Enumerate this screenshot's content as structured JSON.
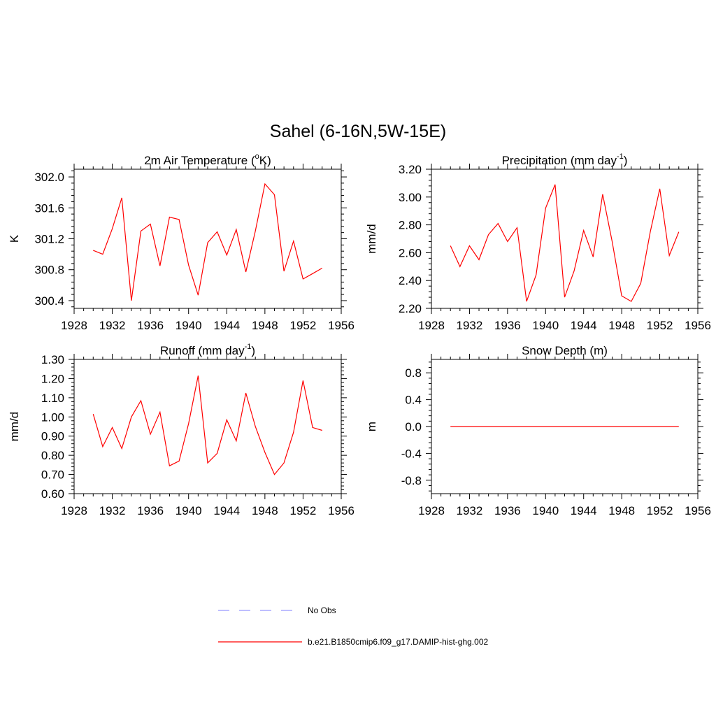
{
  "figure": {
    "title": "Sahel (6-16N,5W-15E)",
    "line_color": "#ff0000",
    "obs_color": "#9999ff"
  },
  "legend": {
    "items": [
      {
        "label": "No Obs",
        "style": "dashed",
        "color": "#9999ff"
      },
      {
        "label": "b.e21.B1850cmip6.f09_g17.DAMIP-hist-ghg.002",
        "style": "solid",
        "color": "#ff0000"
      }
    ]
  },
  "chart_data": [
    {
      "type": "line",
      "title": "2m Air Temperature (",
      "title_sup": "o",
      "title_after": "K)",
      "ylabel": "K",
      "xlim": [
        1928,
        1956
      ],
      "xticks": [
        1928,
        1932,
        1936,
        1940,
        1944,
        1948,
        1952,
        1956
      ],
      "ylim": [
        300.3,
        302.1
      ],
      "yticks": [
        300.4,
        300.8,
        301.2,
        301.6,
        302.0
      ],
      "ytick_labels": [
        "300.4",
        "300.8",
        "301.2",
        "301.6",
        "302.0"
      ],
      "series": [
        {
          "x": [
            1930,
            1931,
            1932,
            1933,
            1934,
            1935,
            1936,
            1937,
            1938,
            1939,
            1940,
            1941,
            1942,
            1943,
            1944,
            1945,
            1946,
            1947,
            1948,
            1949,
            1950,
            1951,
            1952,
            1953,
            1954
          ],
          "values": [
            301.05,
            301.0,
            301.33,
            301.73,
            300.4,
            301.3,
            301.39,
            300.85,
            301.48,
            301.45,
            300.86,
            300.47,
            301.15,
            301.29,
            300.99,
            301.32,
            300.77,
            301.3,
            301.91,
            301.77,
            300.78,
            301.17,
            300.68,
            300.75,
            300.82
          ]
        }
      ]
    },
    {
      "type": "line",
      "title": "Precipitation (mm day",
      "title_sup": "-1",
      "title_after": ")",
      "ylabel": "mm/d",
      "xlim": [
        1928,
        1956
      ],
      "xticks": [
        1928,
        1932,
        1936,
        1940,
        1944,
        1948,
        1952,
        1956
      ],
      "ylim": [
        2.2,
        3.2
      ],
      "yticks": [
        2.2,
        2.4,
        2.6,
        2.8,
        3.0,
        3.2
      ],
      "ytick_labels": [
        "2.20",
        "2.40",
        "2.60",
        "2.80",
        "3.00",
        "3.20"
      ],
      "series": [
        {
          "x": [
            1930,
            1931,
            1932,
            1933,
            1934,
            1935,
            1936,
            1937,
            1938,
            1939,
            1940,
            1941,
            1942,
            1943,
            1944,
            1945,
            1946,
            1947,
            1948,
            1949,
            1950,
            1951,
            1952,
            1953,
            1954
          ],
          "values": [
            2.65,
            2.5,
            2.65,
            2.55,
            2.73,
            2.81,
            2.68,
            2.78,
            2.25,
            2.44,
            2.92,
            3.09,
            2.28,
            2.47,
            2.76,
            2.57,
            3.02,
            2.68,
            2.29,
            2.25,
            2.38,
            2.75,
            3.06,
            2.58,
            2.75
          ]
        }
      ]
    },
    {
      "type": "line",
      "title": "Runoff (mm day",
      "title_sup": "-1",
      "title_after": ")",
      "ylabel": "mm/d",
      "xlim": [
        1928,
        1956
      ],
      "xticks": [
        1928,
        1932,
        1936,
        1940,
        1944,
        1948,
        1952,
        1956
      ],
      "ylim": [
        0.6,
        1.3
      ],
      "yticks": [
        0.6,
        0.7,
        0.8,
        0.9,
        1.0,
        1.1,
        1.2,
        1.3
      ],
      "ytick_labels": [
        "0.60",
        "0.70",
        "0.80",
        "0.90",
        "1.00",
        "1.10",
        "1.20",
        "1.30"
      ],
      "series": [
        {
          "x": [
            1930,
            1931,
            1932,
            1933,
            1934,
            1935,
            1936,
            1937,
            1938,
            1939,
            1940,
            1941,
            1942,
            1943,
            1944,
            1945,
            1946,
            1947,
            1948,
            1949,
            1950,
            1951,
            1952,
            1953,
            1954
          ],
          "values": [
            1.015,
            0.845,
            0.945,
            0.835,
            1.0,
            1.085,
            0.91,
            1.025,
            0.745,
            0.77,
            0.965,
            1.215,
            0.76,
            0.81,
            0.985,
            0.875,
            1.125,
            0.95,
            0.815,
            0.7,
            0.76,
            0.92,
            1.19,
            0.945,
            0.93
          ]
        }
      ]
    },
    {
      "type": "line",
      "title": "Snow Depth (m)",
      "title_sup": "",
      "title_after": "",
      "ylabel": "m",
      "xlim": [
        1928,
        1956
      ],
      "xticks": [
        1928,
        1932,
        1936,
        1940,
        1944,
        1948,
        1952,
        1956
      ],
      "ylim": [
        -1.0,
        1.0
      ],
      "yticks": [
        -0.8,
        -0.4,
        0.0,
        0.4,
        0.8
      ],
      "ytick_labels": [
        "-0.8",
        "-0.4",
        "0.0",
        "0.4",
        "0.8"
      ],
      "series": [
        {
          "x": [
            1930,
            1931,
            1932,
            1933,
            1934,
            1935,
            1936,
            1937,
            1938,
            1939,
            1940,
            1941,
            1942,
            1943,
            1944,
            1945,
            1946,
            1947,
            1948,
            1949,
            1950,
            1951,
            1952,
            1953,
            1954
          ],
          "values": [
            0,
            0,
            0,
            0,
            0,
            0,
            0,
            0,
            0,
            0,
            0,
            0,
            0,
            0,
            0,
            0,
            0,
            0,
            0,
            0,
            0,
            0,
            0,
            0,
            0
          ]
        }
      ]
    }
  ]
}
